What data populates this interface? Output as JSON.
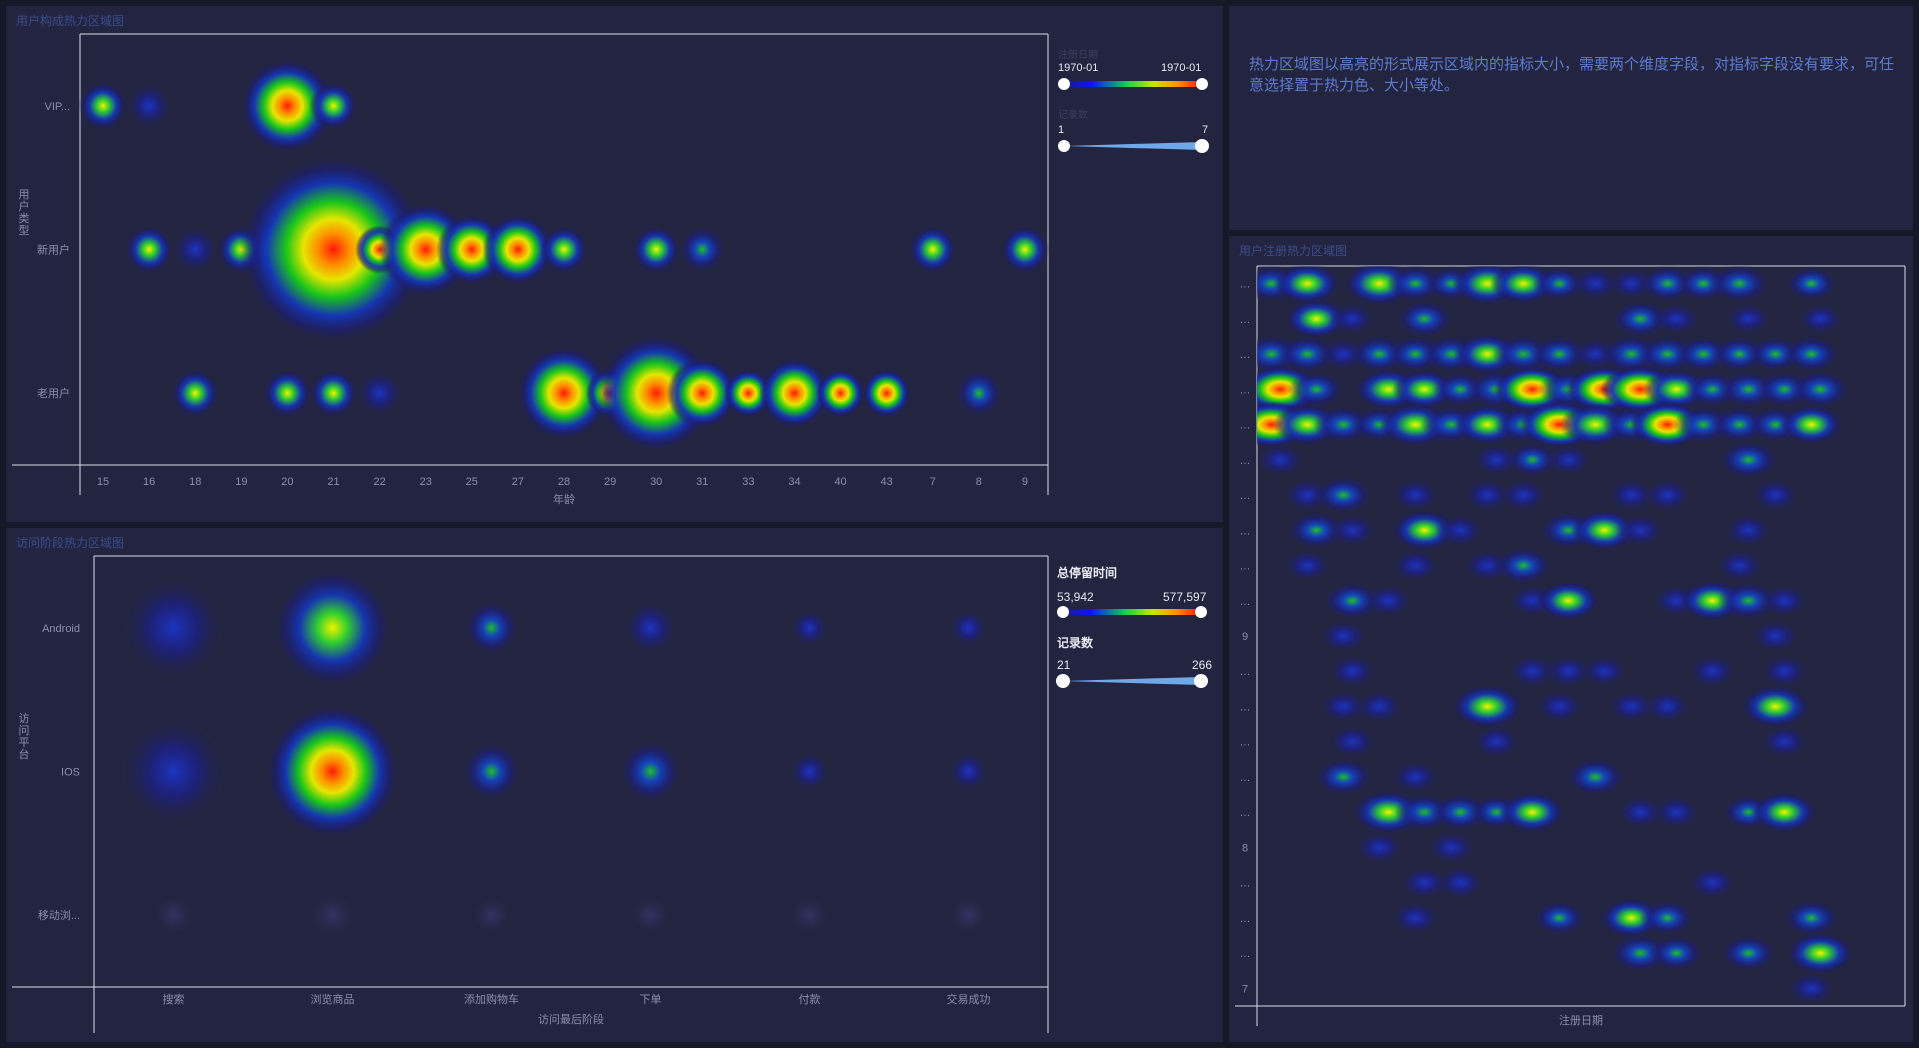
{
  "panel_top_left": {
    "title": "用户构成热力区域图",
    "y_axis_title": "用户类型",
    "x_axis_title": "年龄",
    "legend": {
      "color_title": "注册日期",
      "color_min": "1970-01",
      "color_max": "1970-01",
      "size_title": "记录数",
      "size_min": "1",
      "size_max": "7"
    }
  },
  "panel_bottom_left": {
    "title": "访问阶段热力区域图",
    "y_axis_title": "访问平台",
    "x_axis_title": "访问最后阶段",
    "legend": {
      "color_title": "总停留时间",
      "color_min": "53,942",
      "color_max": "577,597",
      "size_title": "记录数",
      "size_min": "21",
      "size_max": "266"
    }
  },
  "panel_top_right": {
    "description": "热力区域图以高亮的形式展示区域内的指标大小，需要两个维度字段，对指标字段没有要求，可任意选择置于热力色、大小等处。"
  },
  "panel_bottom_right": {
    "title": "用户注册热力区域图",
    "x_axis_title": "注册日期",
    "y_ticks": [
      "…",
      "…",
      "…",
      "…",
      "…",
      "…",
      "…",
      "…",
      "…",
      "…",
      "9",
      "…",
      "…",
      "…",
      "…",
      "…",
      "8",
      "…",
      "…",
      "…",
      "7"
    ]
  },
  "colors": {
    "background": "#151826",
    "panel": "#232540",
    "axis": "#d8dae6",
    "heat_low": "#1a1f8a",
    "heat_mid": "#1fc21f",
    "heat_high": "#f01010"
  },
  "chart_data": [
    {
      "type": "heatmap",
      "name": "user_composition",
      "title": "用户构成热力区域图",
      "xlabel": "年龄",
      "ylabel": "用户类型",
      "categories_x": [
        "15",
        "16",
        "18",
        "19",
        "20",
        "21",
        "22",
        "23",
        "25",
        "27",
        "28",
        "29",
        "30",
        "31",
        "33",
        "34",
        "40",
        "43",
        "7",
        "8",
        "9"
      ],
      "categories_y": [
        "VIP...",
        "新用户",
        "老用户"
      ],
      "points": [
        {
          "x": "15",
          "y": "VIP...",
          "size": 1,
          "heat": 0.85
        },
        {
          "x": "16",
          "y": "VIP...",
          "size": 1,
          "heat": 0.35
        },
        {
          "x": "20",
          "y": "VIP...",
          "size": 3,
          "heat": 1.0
        },
        {
          "x": "21",
          "y": "VIP...",
          "size": 1,
          "heat": 0.85
        },
        {
          "x": "16",
          "y": "新用户",
          "size": 1,
          "heat": 0.85
        },
        {
          "x": "18",
          "y": "新用户",
          "size": 1,
          "heat": 0.2
        },
        {
          "x": "19",
          "y": "新用户",
          "size": 1,
          "heat": 0.85
        },
        {
          "x": "20",
          "y": "新用户",
          "size": 2,
          "heat": 1.0
        },
        {
          "x": "21",
          "y": "新用户",
          "size": 7,
          "heat": 1.0
        },
        {
          "x": "22",
          "y": "新用户",
          "size": 1,
          "heat": 0.95
        },
        {
          "x": "23",
          "y": "新用户",
          "size": 3,
          "heat": 1.0
        },
        {
          "x": "25",
          "y": "新用户",
          "size": 2,
          "heat": 0.95
        },
        {
          "x": "27",
          "y": "新用户",
          "size": 2,
          "heat": 0.95
        },
        {
          "x": "28",
          "y": "新用户",
          "size": 1,
          "heat": 0.85
        },
        {
          "x": "30",
          "y": "新用户",
          "size": 1,
          "heat": 0.8
        },
        {
          "x": "31",
          "y": "新用户",
          "size": 1,
          "heat": 0.4
        },
        {
          "x": "7",
          "y": "新用户",
          "size": 1,
          "heat": 0.8
        },
        {
          "x": "9",
          "y": "新用户",
          "size": 1,
          "heat": 0.8
        },
        {
          "x": "18",
          "y": "老用户",
          "size": 1,
          "heat": 0.85
        },
        {
          "x": "20",
          "y": "老用户",
          "size": 1,
          "heat": 0.85
        },
        {
          "x": "21",
          "y": "老用户",
          "size": 1,
          "heat": 0.85
        },
        {
          "x": "22",
          "y": "老用户",
          "size": 1,
          "heat": 0.3
        },
        {
          "x": "28",
          "y": "老用户",
          "size": 3,
          "heat": 1.0
        },
        {
          "x": "29",
          "y": "老用户",
          "size": 1,
          "heat": 0.9
        },
        {
          "x": "30",
          "y": "老用户",
          "size": 4,
          "heat": 1.0
        },
        {
          "x": "31",
          "y": "老用户",
          "size": 2,
          "heat": 1.0
        },
        {
          "x": "33",
          "y": "老用户",
          "size": 1,
          "heat": 0.9
        },
        {
          "x": "34",
          "y": "老用户",
          "size": 2,
          "heat": 1.0
        },
        {
          "x": "40",
          "y": "老用户",
          "size": 1,
          "heat": 0.9
        },
        {
          "x": "43",
          "y": "老用户",
          "size": 1,
          "heat": 0.9
        },
        {
          "x": "8",
          "y": "老用户",
          "size": 1,
          "heat": 0.6
        }
      ]
    },
    {
      "type": "heatmap",
      "name": "visit_stage",
      "title": "访问阶段热力区域图",
      "xlabel": "访问最后阶段",
      "ylabel": "访问平台",
      "categories_x": [
        "搜索",
        "浏览商品",
        "添加购物车",
        "下单",
        "付款",
        "交易成功"
      ],
      "categories_y": [
        "Android",
        "IOS",
        "移动浏..."
      ],
      "points": [
        {
          "x": "搜索",
          "y": "Android",
          "size": 200,
          "heat": 0.28
        },
        {
          "x": "浏览商品",
          "y": "Android",
          "size": 230,
          "heat": 0.8
        },
        {
          "x": "添加购物车",
          "y": "Android",
          "size": 70,
          "heat": 0.42
        },
        {
          "x": "下单",
          "y": "Android",
          "size": 70,
          "heat": 0.32
        },
        {
          "x": "付款",
          "y": "Android",
          "size": 30,
          "heat": 0.18
        },
        {
          "x": "交易成功",
          "y": "Android",
          "size": 30,
          "heat": 0.18
        },
        {
          "x": "搜索",
          "y": "IOS",
          "size": 210,
          "heat": 0.32
        },
        {
          "x": "浏览商品",
          "y": "IOS",
          "size": 266,
          "heat": 1.0
        },
        {
          "x": "添加购物车",
          "y": "IOS",
          "size": 80,
          "heat": 0.5
        },
        {
          "x": "下单",
          "y": "IOS",
          "size": 90,
          "heat": 0.5
        },
        {
          "x": "付款",
          "y": "IOS",
          "size": 35,
          "heat": 0.22
        },
        {
          "x": "交易成功",
          "y": "IOS",
          "size": 35,
          "heat": 0.2
        },
        {
          "x": "搜索",
          "y": "移动浏...",
          "size": 25,
          "heat": 0.05
        },
        {
          "x": "浏览商品",
          "y": "移动浏...",
          "size": 40,
          "heat": 0.1
        },
        {
          "x": "添加购物车",
          "y": "移动浏...",
          "size": 21,
          "heat": 0.05
        },
        {
          "x": "下单",
          "y": "移动浏...",
          "size": 21,
          "heat": 0.04
        },
        {
          "x": "付款",
          "y": "移动浏...",
          "size": 21,
          "heat": 0.03
        },
        {
          "x": "交易成功",
          "y": "移动浏...",
          "size": 21,
          "heat": 0.03
        }
      ]
    },
    {
      "type": "heatmap",
      "name": "registration",
      "title": "用户注册热力区域图",
      "xlabel": "注册日期",
      "grid_cols": 18,
      "grid_rows": 21,
      "cells": [
        [
          0,
          0,
          0.55
        ],
        [
          1,
          0,
          0.7
        ],
        [
          3,
          0,
          0.85
        ],
        [
          4,
          0,
          0.5
        ],
        [
          5,
          0,
          0.4
        ],
        [
          6,
          0,
          0.8
        ],
        [
          7,
          0,
          0.7
        ],
        [
          8,
          0,
          0.4
        ],
        [
          9,
          0,
          0.35
        ],
        [
          10,
          0,
          0.3
        ],
        [
          11,
          0,
          0.5
        ],
        [
          12,
          0,
          0.45
        ],
        [
          13,
          0,
          0.6
        ],
        [
          15,
          0,
          0.4
        ],
        [
          1,
          1,
          0.65
        ],
        [
          2,
          1,
          0.3
        ],
        [
          4,
          1,
          0.55
        ],
        [
          10,
          1,
          0.55
        ],
        [
          11,
          1,
          0.35
        ],
        [
          13,
          1,
          0.3
        ],
        [
          15,
          1,
          0.3
        ],
        [
          0,
          2,
          0.6
        ],
        [
          1,
          2,
          0.55
        ],
        [
          2,
          2,
          0.35
        ],
        [
          3,
          2,
          0.55
        ],
        [
          4,
          2,
          0.5
        ],
        [
          5,
          2,
          0.55
        ],
        [
          6,
          2,
          0.7
        ],
        [
          7,
          2,
          0.6
        ],
        [
          8,
          2,
          0.5
        ],
        [
          9,
          2,
          0.35
        ],
        [
          10,
          2,
          0.6
        ],
        [
          11,
          2,
          0.55
        ],
        [
          12,
          2,
          0.5
        ],
        [
          13,
          2,
          0.45
        ],
        [
          14,
          2,
          0.45
        ],
        [
          15,
          2,
          0.5
        ],
        [
          0,
          3,
          1.0
        ],
        [
          1,
          3,
          0.5
        ],
        [
          3,
          3,
          0.75
        ],
        [
          4,
          3,
          0.65
        ],
        [
          5,
          3,
          0.45
        ],
        [
          6,
          3,
          0.6
        ],
        [
          7,
          3,
          0.95
        ],
        [
          8,
          3,
          0.55
        ],
        [
          9,
          3,
          0.95
        ],
        [
          10,
          3,
          1.0
        ],
        [
          11,
          3,
          0.7
        ],
        [
          12,
          3,
          0.45
        ],
        [
          13,
          3,
          0.55
        ],
        [
          14,
          3,
          0.5
        ],
        [
          15,
          3,
          0.6
        ],
        [
          0,
          4,
          0.95
        ],
        [
          1,
          4,
          0.75
        ],
        [
          2,
          4,
          0.55
        ],
        [
          3,
          4,
          0.45
        ],
        [
          4,
          4,
          0.85
        ],
        [
          5,
          4,
          0.6
        ],
        [
          6,
          4,
          0.7
        ],
        [
          7,
          4,
          0.5
        ],
        [
          8,
          4,
          1.0
        ],
        [
          9,
          4,
          0.8
        ],
        [
          10,
          4,
          0.5
        ],
        [
          11,
          4,
          0.9
        ],
        [
          12,
          4,
          0.55
        ],
        [
          13,
          4,
          0.5
        ],
        [
          14,
          4,
          0.45
        ],
        [
          15,
          4,
          0.65
        ],
        [
          0,
          5,
          0.35
        ],
        [
          6,
          5,
          0.35
        ],
        [
          7,
          5,
          0.4
        ],
        [
          8,
          5,
          0.3
        ],
        [
          13,
          5,
          0.6
        ],
        [
          1,
          6,
          0.35
        ],
        [
          2,
          6,
          0.55
        ],
        [
          4,
          6,
          0.35
        ],
        [
          6,
          6,
          0.35
        ],
        [
          7,
          6,
          0.35
        ],
        [
          10,
          6,
          0.35
        ],
        [
          11,
          6,
          0.35
        ],
        [
          14,
          6,
          0.35
        ],
        [
          1,
          7,
          0.55
        ],
        [
          2,
          7,
          0.35
        ],
        [
          4,
          7,
          0.7
        ],
        [
          5,
          7,
          0.35
        ],
        [
          8,
          7,
          0.55
        ],
        [
          9,
          7,
          0.7
        ],
        [
          10,
          7,
          0.35
        ],
        [
          13,
          7,
          0.35
        ],
        [
          1,
          8,
          0.3
        ],
        [
          4,
          8,
          0.35
        ],
        [
          6,
          8,
          0.35
        ],
        [
          7,
          8,
          0.55
        ],
        [
          13,
          8,
          0.35
        ],
        [
          2,
          9,
          0.55
        ],
        [
          3,
          9,
          0.35
        ],
        [
          7,
          9,
          0.35
        ],
        [
          8,
          9,
          0.65
        ],
        [
          11,
          9,
          0.35
        ],
        [
          12,
          9,
          0.7
        ],
        [
          13,
          9,
          0.6
        ],
        [
          14,
          9,
          0.35
        ],
        [
          2,
          10,
          0.35
        ],
        [
          14,
          10,
          0.35
        ],
        [
          2,
          11,
          0.35
        ],
        [
          7,
          11,
          0.35
        ],
        [
          8,
          11,
          0.35
        ],
        [
          9,
          11,
          0.3
        ],
        [
          12,
          11,
          0.35
        ],
        [
          14,
          11,
          0.35
        ],
        [
          2,
          12,
          0.35
        ],
        [
          3,
          12,
          0.35
        ],
        [
          6,
          12,
          0.85
        ],
        [
          8,
          12,
          0.35
        ],
        [
          10,
          12,
          0.35
        ],
        [
          11,
          12,
          0.3
        ],
        [
          14,
          12,
          0.8
        ],
        [
          2,
          13,
          0.35
        ],
        [
          6,
          13,
          0.35
        ],
        [
          14,
          13,
          0.35
        ],
        [
          2,
          14,
          0.55
        ],
        [
          4,
          14,
          0.35
        ],
        [
          9,
          14,
          0.6
        ],
        [
          3,
          15,
          0.85
        ],
        [
          4,
          15,
          0.55
        ],
        [
          5,
          15,
          0.55
        ],
        [
          6,
          15,
          0.4
        ],
        [
          7,
          15,
          0.7
        ],
        [
          10,
          15,
          0.35
        ],
        [
          11,
          15,
          0.35
        ],
        [
          13,
          15,
          0.4
        ],
        [
          14,
          15,
          0.7
        ],
        [
          3,
          16,
          0.35
        ],
        [
          5,
          16,
          0.35
        ],
        [
          4,
          17,
          0.35
        ],
        [
          5,
          17,
          0.35
        ],
        [
          12,
          17,
          0.35
        ],
        [
          4,
          18,
          0.35
        ],
        [
          8,
          18,
          0.4
        ],
        [
          10,
          18,
          0.65
        ],
        [
          11,
          18,
          0.45
        ],
        [
          15,
          18,
          0.5
        ],
        [
          10,
          19,
          0.6
        ],
        [
          11,
          19,
          0.45
        ],
        [
          13,
          19,
          0.5
        ],
        [
          15,
          19,
          0.75
        ],
        [
          15,
          20,
          0.35
        ]
      ]
    }
  ]
}
